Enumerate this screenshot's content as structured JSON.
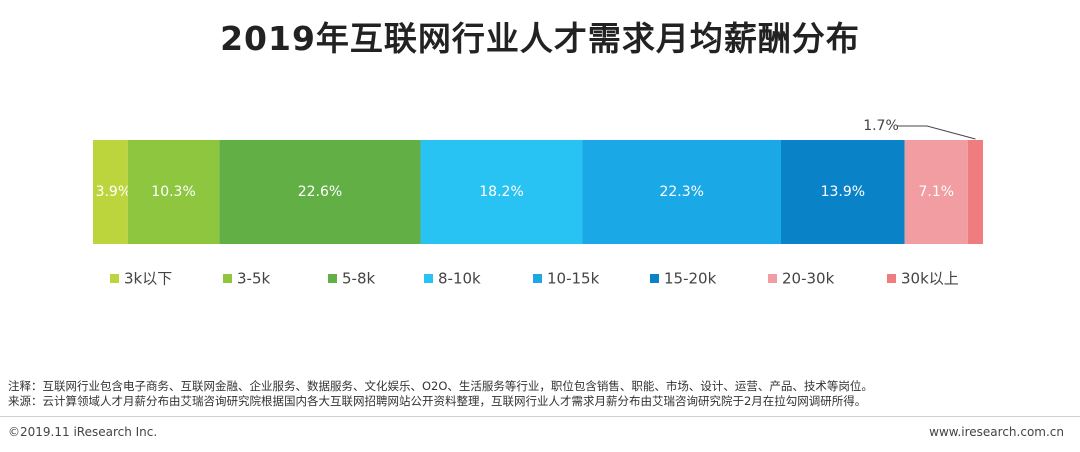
{
  "title": "2019年互联网行业人才需求月均薪酬分布",
  "chart_data": {
    "type": "bar",
    "orientation": "horizontal-stacked-100",
    "categories": [
      "3k以下",
      "3-5k",
      "5-8k",
      "8-10k",
      "10-15k",
      "15-20k",
      "20-30k",
      "30k以上"
    ],
    "values": [
      3.9,
      10.3,
      22.6,
      18.2,
      22.3,
      13.9,
      7.1,
      1.7
    ],
    "data_labels": [
      "3.9%",
      "10.3%",
      "22.6%",
      "18.2%",
      "22.3%",
      "13.9%",
      "7.1%",
      "1.7%"
    ],
    "colors": [
      "#bdd53c",
      "#8ec63f",
      "#62b045",
      "#28c3f2",
      "#1aa9e6",
      "#0a82c8",
      "#f29da1",
      "#ef7d80"
    ],
    "legend_position": "bottom",
    "grid": false
  },
  "notes": {
    "note": "注释：互联网行业包含电子商务、互联网金融、企业服务、数据服务、文化娱乐、O2O、生活服务等行业，职位包含销售、职能、市场、设计、运营、产品、技术等岗位。",
    "source": "来源：云计算领域人才月薪分布由艾瑞咨询研究院根据国内各大互联网招聘网站公开资料整理，互联网行业人才需求月薪分布由艾瑞咨询研究院于2月在拉勾网调研所得。"
  },
  "footer": {
    "copyright": "©2019.11 iResearch Inc.",
    "website": "www.iresearch.com.cn"
  }
}
